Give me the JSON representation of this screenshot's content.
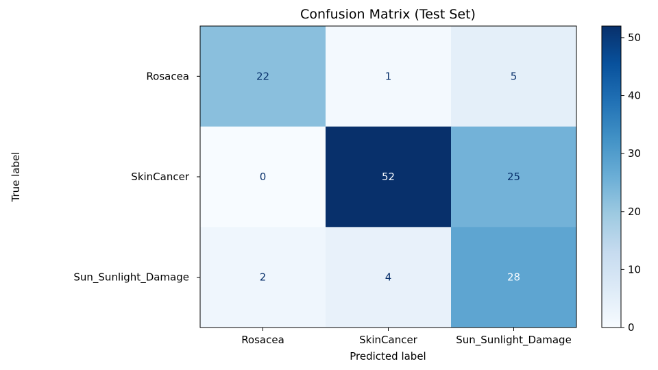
{
  "chart_data": {
    "type": "heatmap",
    "title": "Confusion Matrix (Test Set)",
    "xlabel": "Predicted label",
    "ylabel": "True label",
    "x_categories": [
      "Rosacea",
      "SkinCancer",
      "Sun_Sunlight_Damage"
    ],
    "y_categories": [
      "Rosacea",
      "SkinCancer",
      "Sun_Sunlight_Damage"
    ],
    "values": [
      [
        22,
        1,
        5
      ],
      [
        0,
        52,
        25
      ],
      [
        2,
        4,
        28
      ]
    ],
    "colormap": "Blues",
    "colorbar": {
      "min": 0,
      "max": 52,
      "ticks": [
        0,
        10,
        20,
        30,
        40,
        50
      ]
    },
    "text_colors": {
      "dark": "#08306b",
      "light": "#f7fbff"
    }
  }
}
